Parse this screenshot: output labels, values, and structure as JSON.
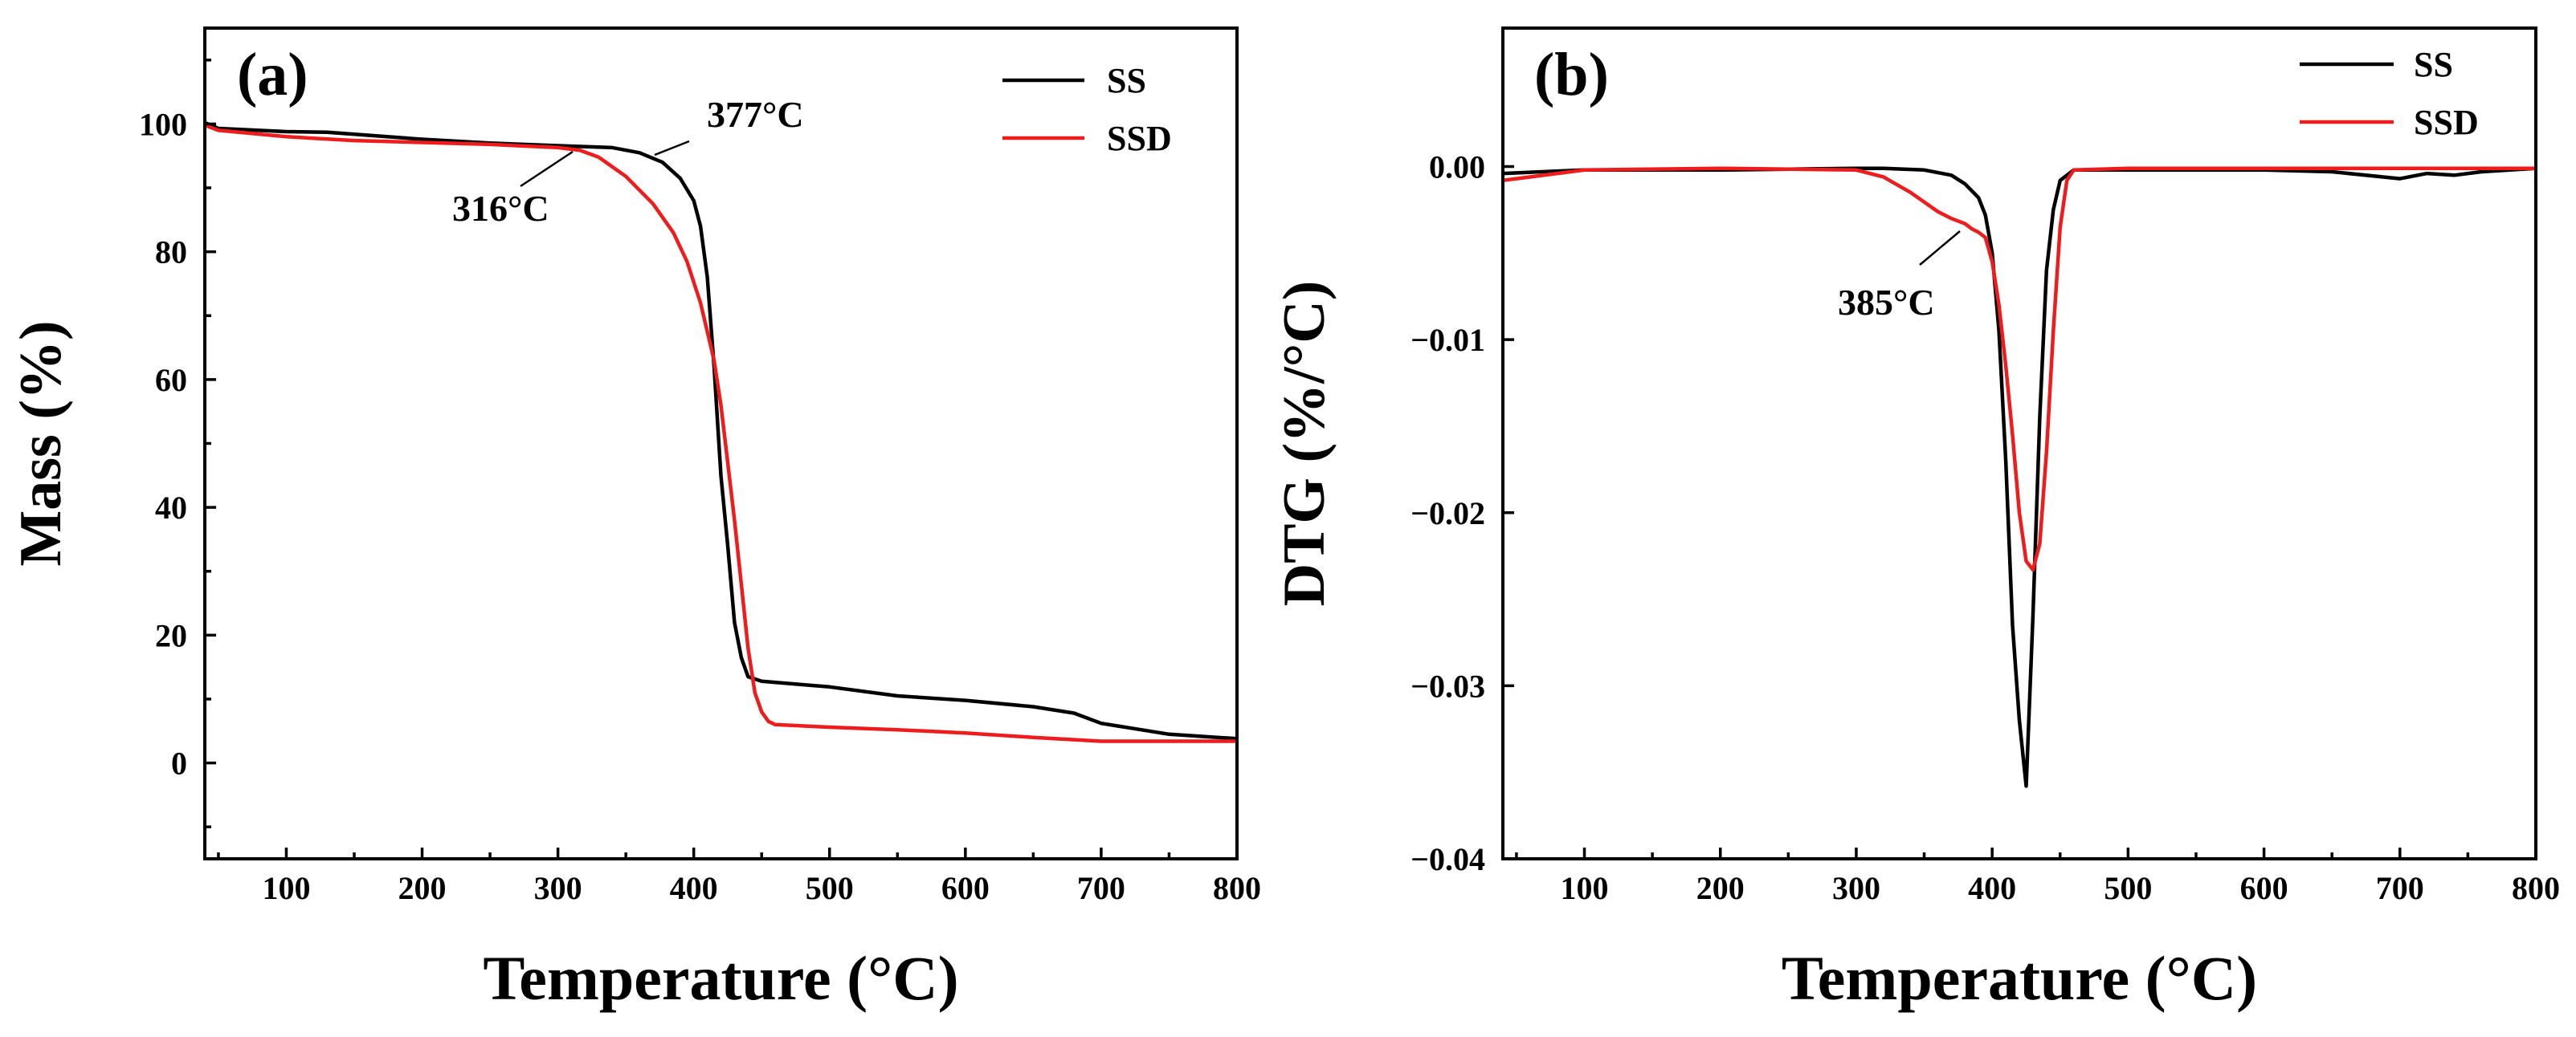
{
  "chart_data": [
    {
      "type": "line",
      "panel_label": "(a)",
      "xlabel": "Temperature (°C)",
      "ylabel": "Mass (%)",
      "xlim": [
        40,
        800
      ],
      "ylim": [
        -15,
        115
      ],
      "xticks": [
        100,
        200,
        300,
        400,
        500,
        600,
        700,
        800
      ],
      "xtick_labels": [
        "100",
        "200",
        "300",
        "400",
        "500",
        "600",
        "700",
        "800"
      ],
      "yticks": [
        0,
        20,
        40,
        60,
        80,
        100
      ],
      "ytick_labels": [
        "0",
        "20",
        "40",
        "60",
        "80",
        "100"
      ],
      "legend_position": "top-right",
      "series": [
        {
          "name": "SS",
          "color": "#000000",
          "x": [
            40,
            50,
            100,
            130,
            200,
            250,
            300,
            340,
            360,
            377,
            390,
            400,
            405,
            410,
            415,
            420,
            425,
            430,
            435,
            440,
            450,
            500,
            550,
            600,
            650,
            680,
            700,
            750,
            800
          ],
          "y": [
            100.2,
            99.3,
            98.8,
            98.7,
            97.6,
            97.0,
            96.6,
            96.3,
            95.5,
            94.0,
            91.5,
            88.0,
            84.0,
            76.0,
            62.0,
            45.0,
            34.0,
            22.0,
            16.5,
            13.5,
            12.8,
            11.9,
            10.5,
            9.8,
            8.8,
            7.8,
            6.2,
            4.5,
            3.8
          ]
        },
        {
          "name": "SSD",
          "color": "#ee1c1c",
          "x": [
            40,
            50,
            100,
            150,
            200,
            250,
            300,
            316,
            330,
            350,
            370,
            385,
            395,
            405,
            415,
            420,
            425,
            430,
            435,
            440,
            445,
            450,
            455,
            460,
            500,
            550,
            600,
            650,
            700,
            750,
            800
          ],
          "y": [
            99.8,
            99.0,
            98.0,
            97.4,
            97.1,
            96.8,
            96.3,
            95.9,
            94.8,
            91.8,
            87.5,
            83.0,
            78.5,
            72.0,
            63.0,
            56.0,
            47.0,
            38.0,
            28.0,
            18.0,
            11.0,
            8.0,
            6.5,
            6.0,
            5.6,
            5.2,
            4.7,
            4.0,
            3.4,
            3.4,
            3.4
          ]
        }
      ],
      "annotations": [
        {
          "text": "377°C",
          "x": 377,
          "y": 94.0
        },
        {
          "text": "316°C",
          "x": 316,
          "y": 95.9
        }
      ]
    },
    {
      "type": "line",
      "panel_label": "(b)",
      "xlabel": "Temperature (°C)",
      "ylabel": "DTG (%/°C)",
      "xlim": [
        40,
        800
      ],
      "ylim": [
        -0.04,
        0.008
      ],
      "xticks": [
        100,
        200,
        300,
        400,
        500,
        600,
        700,
        800
      ],
      "xtick_labels": [
        "100",
        "200",
        "300",
        "400",
        "500",
        "600",
        "700",
        "800"
      ],
      "yticks": [
        0.0,
        -0.01,
        -0.02,
        -0.03,
        -0.04
      ],
      "ytick_labels": [
        "0.00",
        "−0.01",
        "−0.02",
        "−0.03",
        "−0.04"
      ],
      "legend_position": "top-right",
      "series": [
        {
          "name": "SS",
          "color": "#000000",
          "x": [
            40,
            100,
            200,
            300,
            320,
            350,
            370,
            380,
            390,
            395,
            400,
            405,
            410,
            415,
            420,
            425,
            430,
            435,
            440,
            445,
            450,
            460,
            500,
            600,
            650,
            700,
            720,
            740,
            760,
            800
          ],
          "y": [
            -0.0004,
            -0.0002,
            -0.0002,
            -0.0001,
            -0.0001,
            -0.0002,
            -0.0005,
            -0.001,
            -0.0018,
            -0.0028,
            -0.005,
            -0.0095,
            -0.017,
            -0.0265,
            -0.032,
            -0.0358,
            -0.026,
            -0.0145,
            -0.006,
            -0.0025,
            -0.0008,
            -0.0002,
            -0.0002,
            -0.0002,
            -0.0003,
            -0.0007,
            -0.0004,
            -0.0005,
            -0.0003,
            -0.0001
          ]
        },
        {
          "name": "SSD",
          "color": "#ee1c1c",
          "x": [
            40,
            100,
            200,
            300,
            320,
            340,
            360,
            370,
            380,
            385,
            390,
            395,
            400,
            405,
            410,
            415,
            420,
            425,
            430,
            435,
            440,
            445,
            450,
            455,
            460,
            500,
            600,
            700,
            800
          ],
          "y": [
            -0.0008,
            -0.0002,
            -0.0001,
            -0.0002,
            -0.0006,
            -0.0015,
            -0.0026,
            -0.003,
            -0.0033,
            -0.0036,
            -0.0038,
            -0.0041,
            -0.0055,
            -0.008,
            -0.0115,
            -0.0155,
            -0.02,
            -0.0228,
            -0.0233,
            -0.0218,
            -0.0165,
            -0.0095,
            -0.0035,
            -0.0008,
            -0.0002,
            -0.0001,
            -0.0001,
            -0.0001,
            -0.0001
          ]
        }
      ],
      "annotations": [
        {
          "text": "385°C",
          "x": 385,
          "y": -0.0036
        }
      ]
    }
  ]
}
